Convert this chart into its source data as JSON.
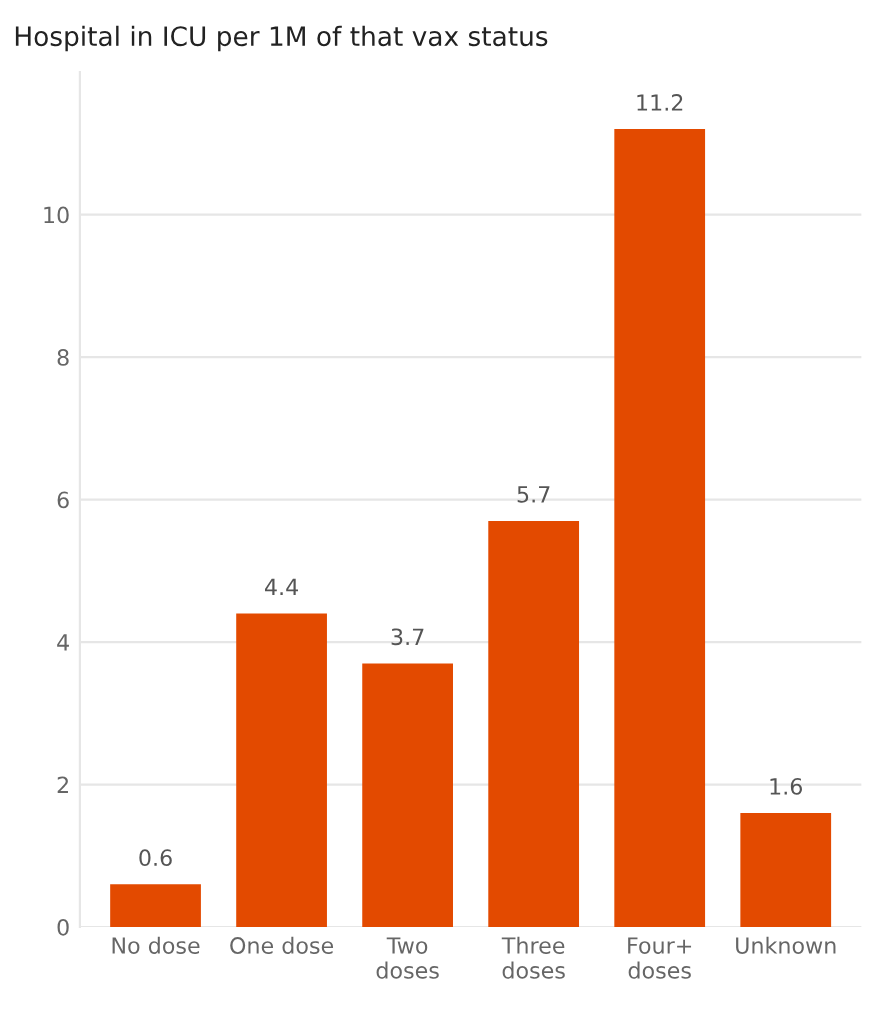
{
  "chart_data": {
    "type": "bar",
    "title": "Hospital in ICU per 1M of that vax status",
    "categories": [
      "No dose",
      "One dose",
      "Two\ndoses",
      "Three\ndoses",
      "Four+\ndoses",
      "Unknown"
    ],
    "values": [
      0.6,
      4.4,
      3.7,
      5.7,
      11.2,
      1.6
    ],
    "color": "#e34a00",
    "ylim": [
      0,
      12
    ],
    "yticks": [
      0,
      2,
      4,
      6,
      8,
      10
    ],
    "grid": "y",
    "data_labels": true
  }
}
